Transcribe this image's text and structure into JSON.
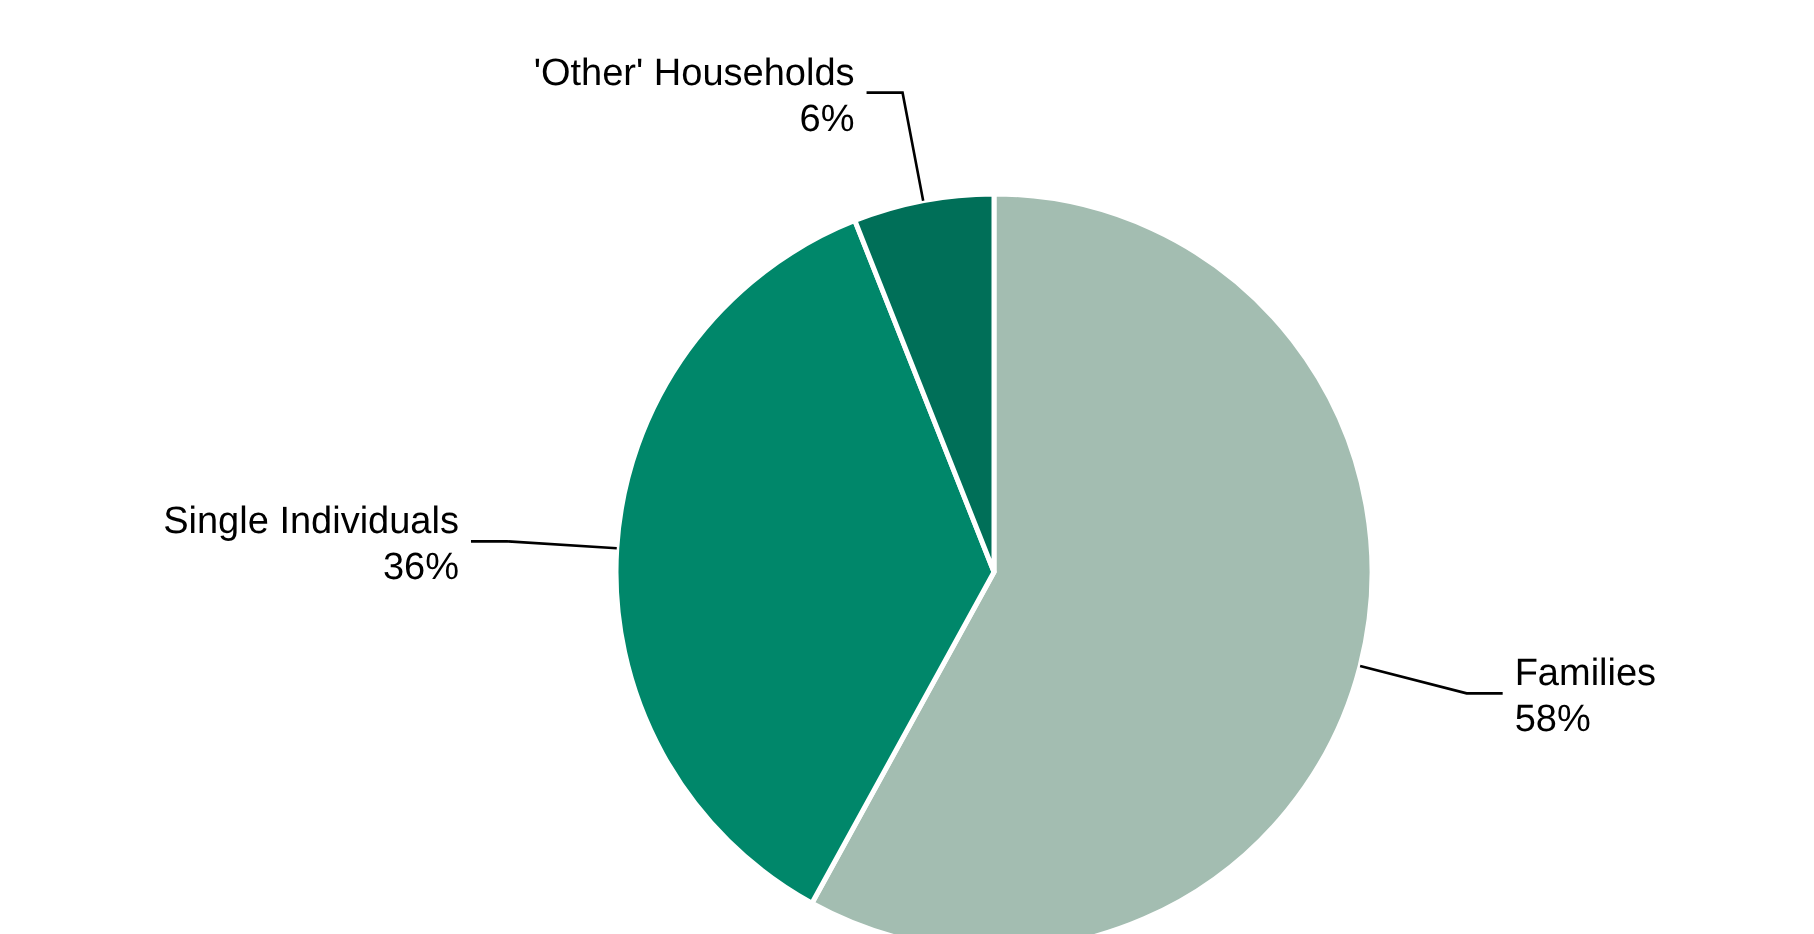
{
  "chart_data": {
    "type": "pie",
    "categories": [
      "Families",
      "Single Individuals",
      "'Other' Households"
    ],
    "values": [
      58,
      36,
      6
    ],
    "value_labels": [
      "58%",
      "36%",
      "6%"
    ],
    "colors": [
      "#a3bdb1",
      "#00876a",
      "#006f58"
    ]
  }
}
